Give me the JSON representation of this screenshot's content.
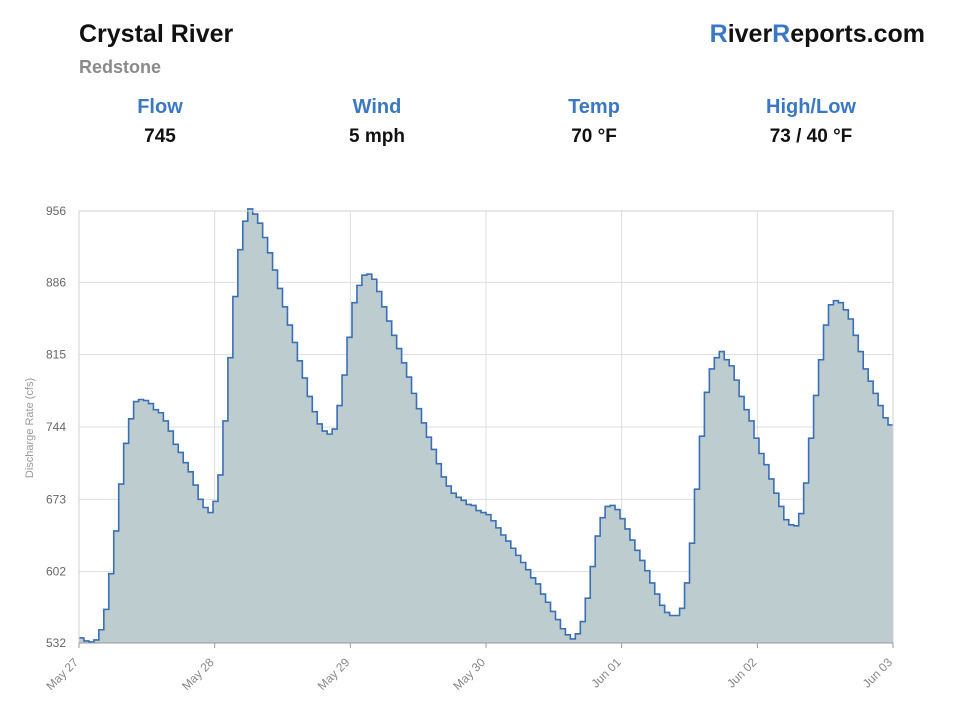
{
  "header": {
    "title": "Crystal River",
    "subtitle": "Redstone",
    "brand_r1": "R",
    "brand_mid": "iver",
    "brand_r2": "R",
    "brand_end": "eports.com"
  },
  "stats": [
    {
      "label": "Flow",
      "value": "745"
    },
    {
      "label": "Wind",
      "value": "5 mph"
    },
    {
      "label": "Temp",
      "value": "70 °F"
    },
    {
      "label": "High/Low",
      "value": "73 / 40 °F"
    }
  ],
  "colors": {
    "accent": "#3a78c3",
    "line": "#3a6fb5",
    "fill": "#bccccf",
    "grid": "#dddddd"
  },
  "chart_data": {
    "type": "area",
    "ylabel": "Discharge Rate (cfs)",
    "ylim": [
      532,
      956
    ],
    "y_ticks": [
      532,
      602,
      673,
      744,
      815,
      886,
      956
    ],
    "xlim": [
      "May 27 00:00",
      "Jun 03 00:00"
    ],
    "x_ticks": [
      "May 27",
      "May 28",
      "May 29",
      "May 30",
      "Jun 01",
      "Jun 02",
      "Jun 03"
    ],
    "grid": true,
    "interval_hours": 1,
    "values": [
      537,
      534,
      533,
      535,
      545,
      565,
      600,
      642,
      688,
      728,
      752,
      769,
      771,
      770,
      767,
      761,
      758,
      750,
      740,
      727,
      719,
      709,
      700,
      687,
      673,
      665,
      660,
      671,
      697,
      750,
      812,
      872,
      918,
      946,
      958,
      953,
      944,
      930,
      915,
      898,
      880,
      862,
      844,
      827,
      809,
      792,
      774,
      759,
      747,
      740,
      737,
      742,
      765,
      795,
      832,
      866,
      883,
      893,
      894,
      889,
      877,
      862,
      848,
      834,
      821,
      807,
      793,
      777,
      762,
      748,
      734,
      722,
      708,
      695,
      686,
      679,
      675,
      672,
      668,
      667,
      662,
      660,
      658,
      652,
      645,
      638,
      632,
      625,
      618,
      611,
      604,
      596,
      590,
      580,
      572,
      563,
      555,
      546,
      540,
      536,
      541,
      553,
      576,
      607,
      637,
      655,
      666,
      667,
      663,
      654,
      644,
      633,
      623,
      613,
      603,
      591,
      580,
      569,
      562,
      559,
      559,
      566,
      591,
      630,
      683,
      735,
      778,
      801,
      812,
      818,
      810,
      804,
      790,
      774,
      761,
      750,
      733,
      718,
      707,
      693,
      679,
      666,
      653,
      648,
      647,
      659,
      689,
      733,
      775,
      810,
      844,
      864,
      868,
      866,
      859,
      850,
      834,
      818,
      801,
      789,
      777,
      765,
      753,
      746
    ]
  }
}
